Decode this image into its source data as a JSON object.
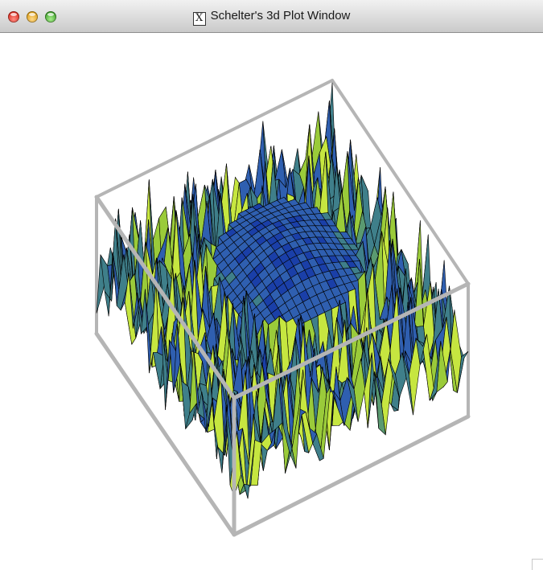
{
  "window": {
    "title": "Schelter's 3d Plot Window",
    "title_icon": "x11-icon",
    "buttons": {
      "close": "close-button",
      "minimize": "minimize-button",
      "zoom": "zoom-button"
    }
  },
  "plot": {
    "type": "3d-surface",
    "colors": {
      "box": "#b5b5b5",
      "mesh": "#000000",
      "surface": [
        "#1a3fa8",
        "#2f5fb0",
        "#3f7f8a",
        "#5a9a70",
        "#9acb3a",
        "#c6e640"
      ]
    }
  }
}
